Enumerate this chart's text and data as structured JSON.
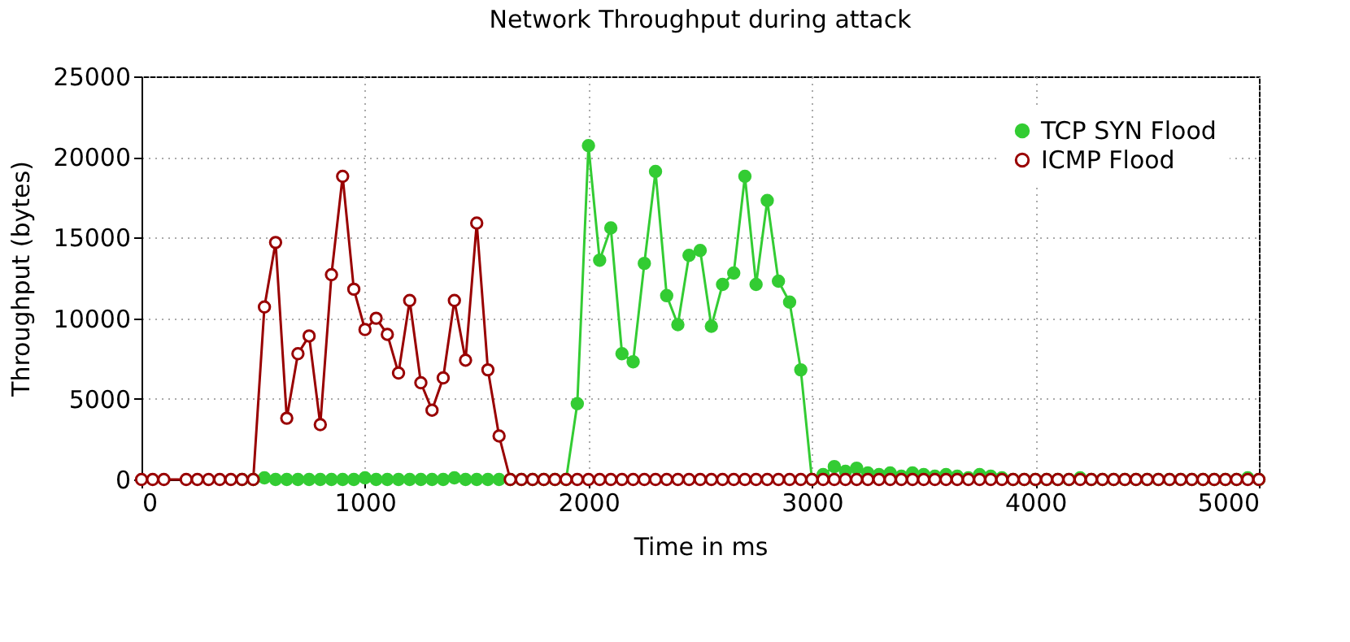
{
  "chart_data": {
    "type": "line",
    "title": "Network Throughput during attack",
    "xlabel": "Time in ms",
    "ylabel": "Throughput (bytes)",
    "x": [
      0,
      50,
      100,
      200,
      250,
      300,
      350,
      400,
      450,
      500,
      550,
      600,
      650,
      700,
      750,
      800,
      850,
      900,
      950,
      1000,
      1050,
      1100,
      1150,
      1200,
      1250,
      1300,
      1350,
      1400,
      1450,
      1500,
      1550,
      1600,
      1650,
      1700,
      1750,
      1800,
      1850,
      1900,
      1950,
      2000,
      2050,
      2100,
      2150,
      2200,
      2250,
      2300,
      2350,
      2400,
      2450,
      2500,
      2550,
      2600,
      2650,
      2700,
      2750,
      2800,
      2850,
      2900,
      2950,
      3000,
      3050,
      3100,
      3150,
      3200,
      3250,
      3300,
      3350,
      3400,
      3450,
      3500,
      3550,
      3600,
      3650,
      3700,
      3750,
      3800,
      3850,
      3900,
      3950,
      4000,
      4050,
      4100,
      4150,
      4200,
      4250,
      4300,
      4350,
      4400,
      4450,
      4500,
      4550,
      4600,
      4650,
      4700,
      4750,
      4800,
      4850,
      4900,
      4950,
      5000
    ],
    "series": [
      {
        "name": "TCP SYN Flood",
        "color": "#33cc33",
        "values": [
          null,
          null,
          null,
          null,
          null,
          null,
          null,
          null,
          0,
          0,
          100,
          0,
          0,
          0,
          0,
          0,
          0,
          0,
          0,
          100,
          0,
          0,
          0,
          0,
          0,
          0,
          0,
          100,
          0,
          0,
          0,
          0,
          0,
          0,
          0,
          0,
          0,
          0,
          4700,
          20700,
          13600,
          15600,
          7800,
          7300,
          13400,
          19100,
          11400,
          9600,
          13900,
          14200,
          9500,
          12100,
          12800,
          18800,
          12100,
          17300,
          12300,
          11000,
          6800,
          0,
          300,
          800,
          500,
          700,
          400,
          300,
          400,
          200,
          400,
          300,
          200,
          300,
          200,
          100,
          300,
          200,
          100,
          0,
          0,
          0,
          0,
          0,
          0,
          100,
          0,
          0,
          0,
          0,
          0,
          0,
          0,
          0,
          0,
          0,
          0,
          0,
          0,
          0,
          100,
          0
        ]
      },
      {
        "name": "ICMP Flood",
        "color": "#990000",
        "values": [
          0,
          0,
          0,
          0,
          0,
          0,
          0,
          0,
          0,
          0,
          10700,
          14700,
          3800,
          7800,
          8900,
          3400,
          12700,
          18800,
          11800,
          9300,
          10000,
          9000,
          6600,
          11100,
          6000,
          4300,
          6300,
          11100,
          7400,
          15900,
          6800,
          2700,
          0,
          0,
          0,
          0,
          0,
          0,
          0,
          0,
          0,
          0,
          0,
          0,
          0,
          0,
          0,
          0,
          0,
          0,
          0,
          0,
          0,
          0,
          0,
          0,
          0,
          0,
          0,
          0,
          0,
          0,
          0,
          0,
          0,
          0,
          0,
          0,
          0,
          0,
          0,
          0,
          0,
          0,
          0,
          0,
          0,
          0,
          0,
          0,
          0,
          0,
          0,
          0,
          0,
          0,
          0,
          0,
          0,
          0,
          0,
          0,
          0,
          0,
          0,
          0,
          0,
          0,
          0,
          0
        ]
      }
    ],
    "xlim": [
      0,
      5000
    ],
    "xticks": [
      0,
      1000,
      2000,
      3000,
      4000,
      5000
    ],
    "ylim": [
      0,
      25000
    ],
    "yticks": [
      0,
      5000,
      10000,
      15000,
      20000,
      25000
    ],
    "grid": true,
    "legend": "top right",
    "marker": "circle",
    "line_style": "solid"
  }
}
